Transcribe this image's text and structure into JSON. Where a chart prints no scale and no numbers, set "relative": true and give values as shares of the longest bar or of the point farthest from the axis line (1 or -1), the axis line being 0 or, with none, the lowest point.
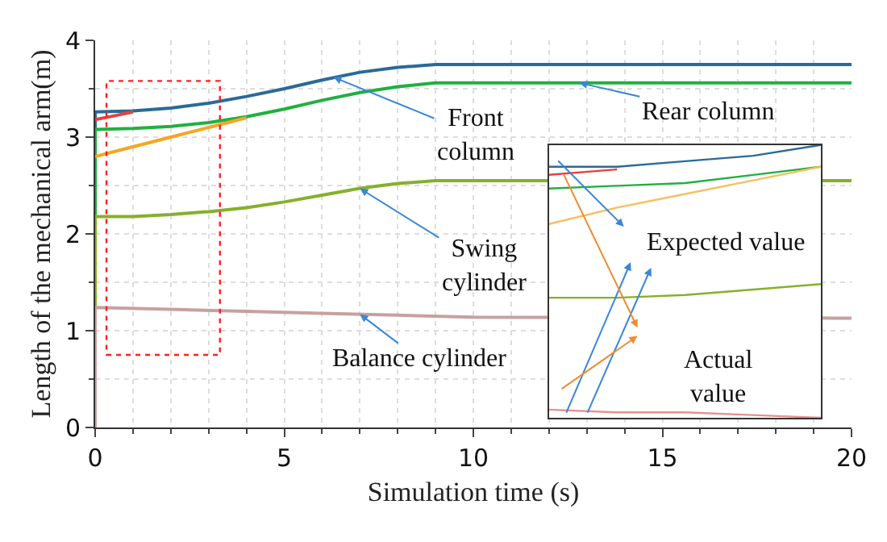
{
  "chart_data": [
    {
      "type": "line",
      "xlabel": "Simulation time (s)",
      "ylabel": "Length of the mechanical arm(m)",
      "xlim": [
        0,
        20
      ],
      "xticks": [
        0,
        5,
        10,
        15,
        20
      ],
      "ylim": [
        0,
        4
      ],
      "yticks": [
        0,
        1,
        2,
        3,
        4
      ],
      "grid": true,
      "marker": "none",
      "line_style": "solid",
      "series": [
        {
          "color": "#2a6a99",
          "x": [
            0,
            0,
            1,
            2,
            3,
            4,
            5,
            6,
            7,
            8,
            9,
            20
          ],
          "values": [
            0,
            3.26,
            3.27,
            3.3,
            3.35,
            3.42,
            3.5,
            3.59,
            3.67,
            3.72,
            3.75,
            3.75
          ]
        },
        {
          "color": "#20b040",
          "x": [
            0,
            0,
            1,
            2,
            3,
            4,
            5,
            6,
            7,
            8,
            9,
            20
          ],
          "values": [
            0,
            3.08,
            3.09,
            3.11,
            3.15,
            3.21,
            3.29,
            3.38,
            3.46,
            3.52,
            3.56,
            3.56
          ]
        },
        {
          "color": "#86b02a",
          "x": [
            0,
            0,
            1,
            2,
            3,
            4,
            5,
            6,
            7,
            8,
            9,
            20
          ],
          "values": [
            0,
            2.18,
            2.18,
            2.2,
            2.23,
            2.27,
            2.33,
            2.4,
            2.47,
            2.52,
            2.55,
            2.55
          ]
        },
        {
          "color": "#c8a0a0",
          "x": [
            0,
            0,
            2,
            4,
            6,
            8,
            10,
            19.5,
            20
          ],
          "values": [
            0,
            1.24,
            1.22,
            1.2,
            1.18,
            1.16,
            1.14,
            1.13,
            1.13
          ]
        },
        {
          "color": "#e84040",
          "x": [
            0,
            0.5,
            1
          ],
          "values": [
            3.18,
            3.22,
            3.26
          ]
        },
        {
          "color": "#f5a623",
          "x": [
            0,
            1,
            2,
            3,
            4
          ],
          "values": [
            2.8,
            2.9,
            3.0,
            3.1,
            3.2
          ]
        }
      ],
      "annotations": [
        {
          "text": "Front\ncolumn",
          "x": 6.3,
          "y": 3.62
        },
        {
          "text": "Rear column",
          "x": 12.8,
          "y": 3.56
        },
        {
          "text": "Swing\ncylinder",
          "x": 7,
          "y": 2.47
        },
        {
          "text": "Balance cylinder",
          "x": 7,
          "y": 1.17
        }
      ]
    },
    {
      "type": "line",
      "relative": true,
      "categories": [
        null,
        null,
        null,
        null,
        null
      ],
      "grid": false,
      "tick_labels": false,
      "marker": "none",
      "series": [
        {
          "color": "#e84040",
          "values": [
            0.89,
            0.91,
            null,
            null,
            null
          ]
        },
        {
          "color": "#2a6a99",
          "values": [
            0.92,
            0.92,
            0.94,
            0.96,
            1.0
          ]
        },
        {
          "color": "#20b040",
          "values": [
            0.84,
            0.85,
            0.86,
            0.89,
            0.92
          ]
        },
        {
          "color": "#f5c060",
          "values": [
            0.71,
            0.77,
            0.82,
            0.87,
            0.92
          ]
        },
        {
          "color": "#86b02a",
          "values": [
            0.44,
            0.44,
            0.45,
            0.47,
            0.49
          ]
        },
        {
          "color": "#e89090",
          "values": [
            0.03,
            0.02,
            0.02,
            0.01,
            0.0
          ]
        }
      ],
      "annotations": [
        "Expected value",
        "Actual\nvalue"
      ]
    }
  ]
}
